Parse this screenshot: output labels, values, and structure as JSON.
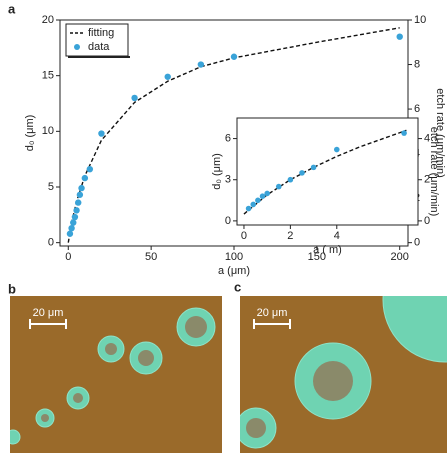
{
  "chart_data": [
    {
      "type": "scatter",
      "label": "a",
      "xlabel": "a (μm)",
      "ylabel": "d₀ (μm)",
      "y2label": "etch rate (μm/min)",
      "xlim": [
        -5,
        205
      ],
      "ylim": [
        -0.3,
        20
      ],
      "y2lim": [
        -0.15,
        10
      ],
      "xticks": [
        0,
        50,
        100,
        150,
        200
      ],
      "yticks": [
        0,
        5,
        10,
        15,
        20
      ],
      "y2ticks": [
        0,
        2,
        4,
        6,
        8,
        10
      ],
      "legend": "upper left",
      "series": [
        {
          "name": "fitting",
          "type": "line",
          "color": "#111111",
          "x": [
            0,
            2,
            5,
            10,
            20,
            40,
            60,
            80,
            100,
            150,
            200
          ],
          "values": [
            0,
            1.8,
            3.7,
            6,
            9.2,
            12.6,
            14.5,
            15.8,
            16.6,
            18,
            19.3
          ]
        },
        {
          "name": "data",
          "type": "scatter",
          "color": "#3aa3d8",
          "x": [
            1,
            2,
            3,
            4,
            5,
            6,
            7,
            8,
            10,
            13,
            20,
            40,
            60,
            80,
            100,
            200
          ],
          "values": [
            0.8,
            1.3,
            1.8,
            2.3,
            2.9,
            3.6,
            4.3,
            4.9,
            5.8,
            6.6,
            9.8,
            13,
            14.9,
            16,
            16.7,
            18.5
          ]
        }
      ]
    },
    {
      "type": "scatter",
      "xlabel": "a ( m)",
      "ylabel": "d₀ (μm)",
      "y2label": "etch rate (μm/min)",
      "xlim": [
        -0.3,
        7.5
      ],
      "ylim": [
        -0.3,
        7.5
      ],
      "y2lim": [
        -0.2,
        5
      ],
      "xticks": [
        0,
        2,
        4
      ],
      "yticks": [
        0,
        3,
        6
      ],
      "y2ticks": [
        0,
        2,
        4
      ],
      "series": [
        {
          "type": "line",
          "color": "#111111",
          "x": [
            0,
            1,
            2,
            3,
            4,
            5,
            6,
            7
          ],
          "values": [
            0.5,
            1.9,
            3,
            3.9,
            4.7,
            5.4,
            6,
            6.6
          ]
        },
        {
          "type": "scatter",
          "color": "#3aa3d8",
          "x": [
            0.2,
            0.4,
            0.6,
            0.8,
            1,
            1.5,
            2,
            2.5,
            3,
            4,
            6.9
          ],
          "values": [
            0.9,
            1.2,
            1.5,
            1.8,
            2,
            2.5,
            3,
            3.5,
            3.9,
            5.2,
            6.4
          ]
        }
      ]
    }
  ],
  "images": [
    {
      "label": "b",
      "scale_bar": "20 μm"
    },
    {
      "label": "c",
      "scale_bar": "20 μm"
    }
  ]
}
